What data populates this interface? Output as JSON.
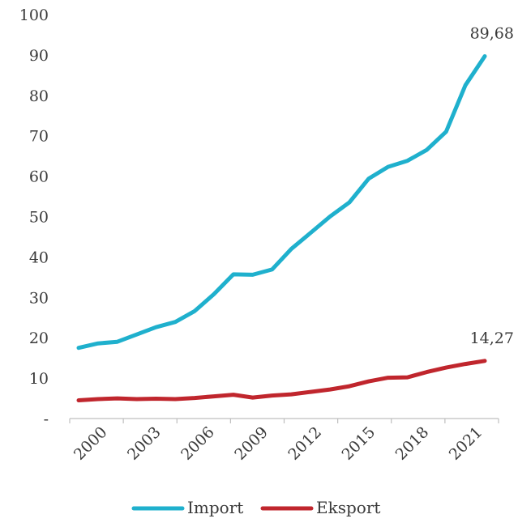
{
  "chart_data": {
    "type": "line",
    "title": "",
    "xlabel": "",
    "ylabel": "",
    "x": [
      2000,
      2001,
      2002,
      2003,
      2004,
      2005,
      2006,
      2007,
      2008,
      2009,
      2010,
      2011,
      2012,
      2013,
      2014,
      2015,
      2016,
      2017,
      2018,
      2019,
      2020,
      2021
    ],
    "x_tick_labels": [
      "2000",
      "2003",
      "2006",
      "2009",
      "2012",
      "2015",
      "2018",
      "2021"
    ],
    "y_tick_labels": [
      "-",
      "10",
      "20",
      "30",
      "40",
      "50",
      "60",
      "70",
      "80",
      "90",
      "100"
    ],
    "ylim": [
      0,
      100
    ],
    "xlim": [
      2000,
      2021
    ],
    "grid": false,
    "legend": "bottom",
    "series": [
      {
        "name": "Import",
        "color": "#1fb0cd",
        "values": [
          17.5,
          18.6,
          19.0,
          20.8,
          22.6,
          23.9,
          26.6,
          30.8,
          35.7,
          35.6,
          36.9,
          42.0,
          46.0,
          50.0,
          53.5,
          59.4,
          62.3,
          63.8,
          66.5,
          71.0,
          82.5,
          89.68
        ],
        "end_label": "89,68"
      },
      {
        "name": "Eksport",
        "color": "#c0262d",
        "values": [
          4.5,
          4.8,
          5.0,
          4.8,
          4.9,
          4.8,
          5.1,
          5.5,
          5.9,
          5.2,
          5.7,
          6.0,
          6.6,
          7.2,
          8.0,
          9.2,
          10.1,
          10.2,
          11.5,
          12.6,
          13.5,
          14.27
        ],
        "end_label": "14,27"
      }
    ]
  }
}
